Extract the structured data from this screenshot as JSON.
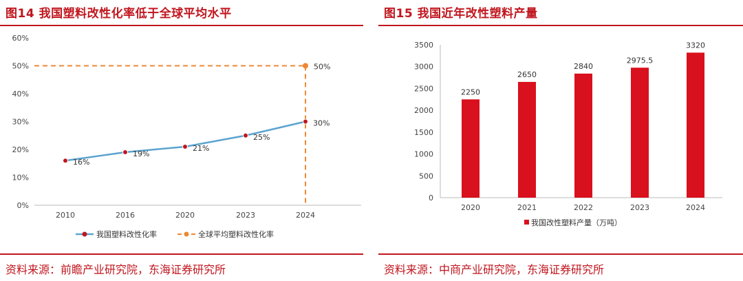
{
  "left": {
    "title": "图14  我国塑料改性化率低于全球平均水平",
    "source": "资料来源：前瞻产业研究院，东海证券研究所",
    "chart_data": {
      "type": "line",
      "categories": [
        "2010",
        "2016",
        "2020",
        "2023",
        "2024"
      ],
      "yticks": [
        "0%",
        "10%",
        "20%",
        "30%",
        "40%",
        "50%",
        "60%"
      ],
      "ylim": [
        0,
        60
      ],
      "series": [
        {
          "name": "我国塑料改性化率",
          "values": [
            16,
            19,
            21,
            25,
            30
          ],
          "labels": [
            "16%",
            "19%",
            "21%",
            "25%",
            "30%"
          ],
          "color": "#5ba3cf",
          "marker_color": "#c0161e"
        },
        {
          "name": "全球平均塑料改性化率",
          "value": 50,
          "label": "50%",
          "at_category": "2024",
          "style": "dashed",
          "color": "#ee8833"
        }
      ],
      "legend_position": "bottom"
    }
  },
  "right": {
    "title": "图15  我国近年改性塑料产量",
    "source": "资料来源：中商产业研究院，东海证券研究所",
    "chart_data": {
      "type": "bar",
      "categories": [
        "2020",
        "2021",
        "2022",
        "2023",
        "2024"
      ],
      "values": [
        2250,
        2650,
        2840,
        2975.5,
        3320
      ],
      "labels": [
        "2250",
        "2650",
        "2840",
        "2975.5",
        "3320"
      ],
      "yticks": [
        "0",
        "500",
        "1000",
        "1500",
        "2000",
        "2500",
        "3000",
        "3500"
      ],
      "ylim": [
        0,
        3500
      ],
      "series_name": "我国改性塑料产量（万吨）",
      "color": "#d9101d",
      "legend_position": "bottom"
    }
  }
}
